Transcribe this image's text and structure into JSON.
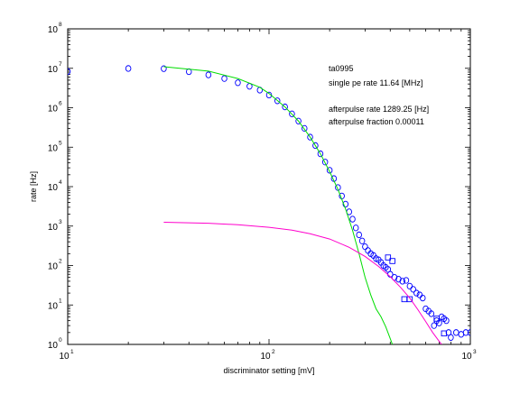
{
  "chart_data": {
    "type": "scatter",
    "xlabel": "discriminator setting [mV]",
    "ylabel": "rate [Hz]",
    "xscale": "log",
    "yscale": "log",
    "xlim": [
      10,
      1000
    ],
    "ylim": [
      1,
      100000000
    ],
    "x_ticks": [
      {
        "base": "10",
        "exp": "1"
      },
      {
        "base": "10",
        "exp": "2"
      },
      {
        "base": "10",
        "exp": "3"
      }
    ],
    "y_ticks": [
      {
        "base": "10",
        "exp": "0"
      },
      {
        "base": "10",
        "exp": "1"
      },
      {
        "base": "10",
        "exp": "2"
      },
      {
        "base": "10",
        "exp": "3"
      },
      {
        "base": "10",
        "exp": "4"
      },
      {
        "base": "10",
        "exp": "5"
      },
      {
        "base": "10",
        "exp": "6"
      },
      {
        "base": "10",
        "exp": "7"
      },
      {
        "base": "10",
        "exp": "8"
      }
    ],
    "grid": false,
    "annotations": [
      "ta0995",
      "single pe rate 11.64 [MHz]",
      "afterpulse rate 1289.25 [Hz]",
      "afterpulse fraction 0.00011"
    ],
    "series": [
      {
        "marker": "circle",
        "color": "#0000ff",
        "points": [
          [
            10,
            8300000
          ],
          [
            20,
            9900000
          ],
          [
            30,
            9800000
          ],
          [
            40,
            8200000
          ],
          [
            50,
            6800000
          ],
          [
            60,
            5500000
          ],
          [
            70,
            4300000
          ],
          [
            80,
            3500000
          ],
          [
            90,
            2800000
          ],
          [
            100,
            2100000
          ],
          [
            110,
            1500000
          ],
          [
            120,
            1050000
          ],
          [
            130,
            700000
          ],
          [
            140,
            460000
          ],
          [
            150,
            300000
          ],
          [
            160,
            180000
          ],
          [
            170,
            110000
          ],
          [
            180,
            68000
          ],
          [
            190,
            42000
          ],
          [
            200,
            26000
          ],
          [
            210,
            16000
          ],
          [
            220,
            9500
          ],
          [
            230,
            5800
          ],
          [
            240,
            3600
          ],
          [
            250,
            2300
          ],
          [
            260,
            1500
          ],
          [
            270,
            900
          ],
          [
            280,
            600
          ],
          [
            290,
            420
          ],
          [
            300,
            300
          ],
          [
            310,
            240
          ],
          [
            320,
            200
          ],
          [
            330,
            180
          ],
          [
            340,
            150
          ],
          [
            350,
            140
          ],
          [
            360,
            120
          ],
          [
            370,
            100
          ],
          [
            380,
            90
          ],
          [
            390,
            80
          ],
          [
            400,
            60
          ],
          [
            420,
            50
          ],
          [
            440,
            45
          ],
          [
            460,
            40
          ],
          [
            480,
            42
          ],
          [
            500,
            30
          ],
          [
            520,
            25
          ],
          [
            540,
            20
          ],
          [
            560,
            18
          ],
          [
            580,
            15
          ],
          [
            600,
            8
          ],
          [
            620,
            7
          ],
          [
            640,
            6
          ],
          [
            660,
            3
          ],
          [
            680,
            4
          ],
          [
            700,
            3.5
          ],
          [
            720,
            5
          ],
          [
            740,
            4.5
          ],
          [
            760,
            4
          ],
          [
            780,
            2
          ],
          [
            800,
            1.5
          ],
          [
            850,
            2
          ],
          [
            900,
            1.8
          ],
          [
            950,
            2
          ],
          [
            1000,
            2
          ]
        ]
      },
      {
        "marker": "square",
        "color": "#0000ff",
        "points": [
          [
            390,
            160
          ],
          [
            410,
            130
          ],
          [
            470,
            14
          ],
          [
            500,
            14
          ],
          [
            680,
            4.5
          ],
          [
            740,
            1.9
          ]
        ]
      },
      {
        "marker": "line",
        "color": "#00dd00",
        "points": [
          [
            30,
            11000000
          ],
          [
            50,
            8500000
          ],
          [
            70,
            5500000
          ],
          [
            90,
            3300000
          ],
          [
            100,
            2300000
          ],
          [
            120,
            1050000
          ],
          [
            140,
            460000
          ],
          [
            160,
            180000
          ],
          [
            180,
            68000
          ],
          [
            200,
            24000
          ],
          [
            220,
            8500
          ],
          [
            240,
            2700
          ],
          [
            260,
            780
          ],
          [
            280,
            200
          ],
          [
            300,
            50
          ],
          [
            320,
            18
          ],
          [
            340,
            8
          ],
          [
            360,
            5
          ],
          [
            380,
            2.8
          ],
          [
            400,
            1.4
          ],
          [
            410,
            1
          ]
        ]
      },
      {
        "marker": "line",
        "color": "#ff00cc",
        "points": [
          [
            30,
            1250
          ],
          [
            50,
            1180
          ],
          [
            70,
            1080
          ],
          [
            100,
            930
          ],
          [
            130,
            790
          ],
          [
            160,
            640
          ],
          [
            200,
            470
          ],
          [
            250,
            290
          ],
          [
            300,
            170
          ],
          [
            350,
            95
          ],
          [
            400,
            52
          ],
          [
            450,
            28
          ],
          [
            500,
            15
          ],
          [
            550,
            7.5
          ],
          [
            600,
            3.8
          ],
          [
            650,
            2
          ],
          [
            700,
            1.2
          ],
          [
            720,
            1
          ]
        ]
      }
    ]
  }
}
